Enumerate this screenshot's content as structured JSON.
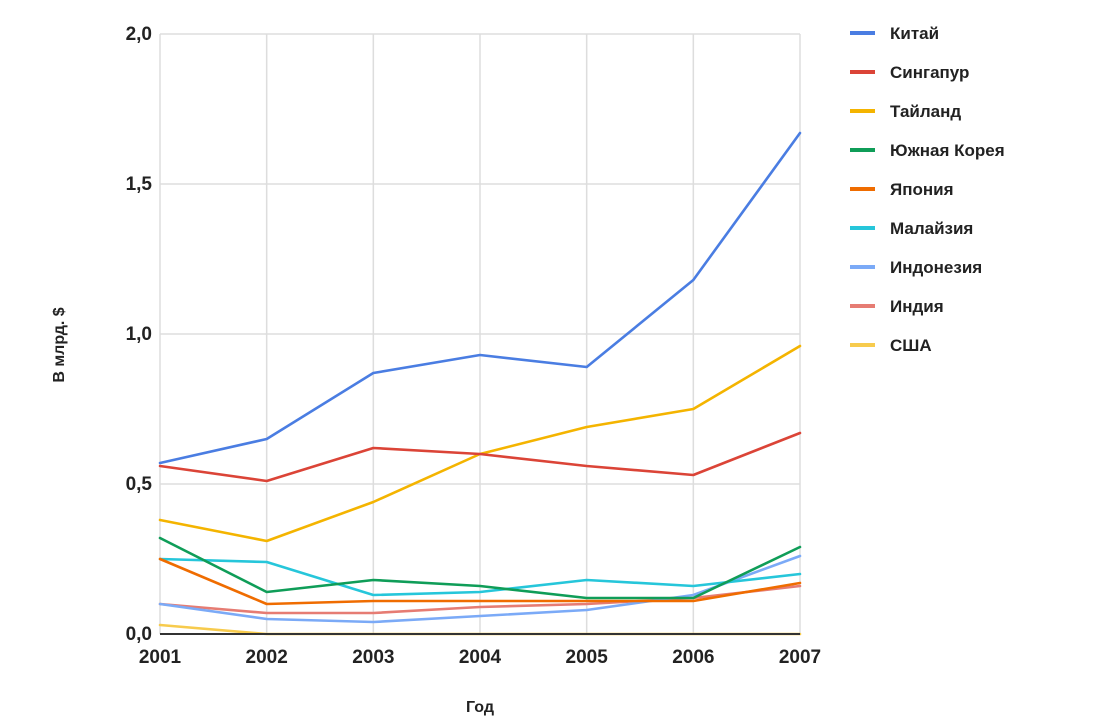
{
  "chart_data": {
    "type": "line",
    "title": "",
    "xlabel": "Год",
    "ylabel": "В млрд. $",
    "x": [
      "2001",
      "2002",
      "2003",
      "2004",
      "2005",
      "2006",
      "2007"
    ],
    "ylim": [
      0,
      2.0
    ],
    "yticks": [
      0,
      0.5,
      1.0,
      1.5,
      2.0
    ],
    "ytick_labels": [
      "0,0",
      "0,5",
      "1,0",
      "1,5",
      "2,0"
    ],
    "grid": true,
    "legend_position": "right",
    "series": [
      {
        "name": "Китай",
        "color": "#4a7de2",
        "values": [
          0.57,
          0.65,
          0.87,
          0.93,
          0.89,
          1.18,
          1.67
        ]
      },
      {
        "name": "Сингапур",
        "color": "#db4437",
        "values": [
          0.56,
          0.51,
          0.62,
          0.6,
          0.56,
          0.53,
          0.67
        ]
      },
      {
        "name": "Тайланд",
        "color": "#f4b400",
        "values": [
          0.38,
          0.31,
          0.44,
          0.6,
          0.69,
          0.75,
          0.96
        ]
      },
      {
        "name": "Южная Корея",
        "color": "#0f9d58",
        "values": [
          0.32,
          0.14,
          0.18,
          0.16,
          0.12,
          0.12,
          0.29
        ]
      },
      {
        "name": "Япония",
        "color": "#ef6c00",
        "values": [
          0.25,
          0.1,
          0.11,
          0.11,
          0.11,
          0.11,
          0.17
        ]
      },
      {
        "name": "Малайзия",
        "color": "#26c6da",
        "values": [
          0.25,
          0.24,
          0.13,
          0.14,
          0.18,
          0.16,
          0.2
        ]
      },
      {
        "name": "Индонезия",
        "color": "#7baaf7",
        "values": [
          0.1,
          0.05,
          0.04,
          0.06,
          0.08,
          0.13,
          0.26
        ]
      },
      {
        "name": "Индия",
        "color": "#e67c73",
        "values": [
          0.1,
          0.07,
          0.07,
          0.09,
          0.1,
          0.12,
          0.16
        ]
      },
      {
        "name": "США",
        "color": "#f7cb4d",
        "values": [
          0.03,
          0.0,
          0.0,
          0.0,
          0.0,
          0.0,
          0.0
        ]
      }
    ]
  }
}
